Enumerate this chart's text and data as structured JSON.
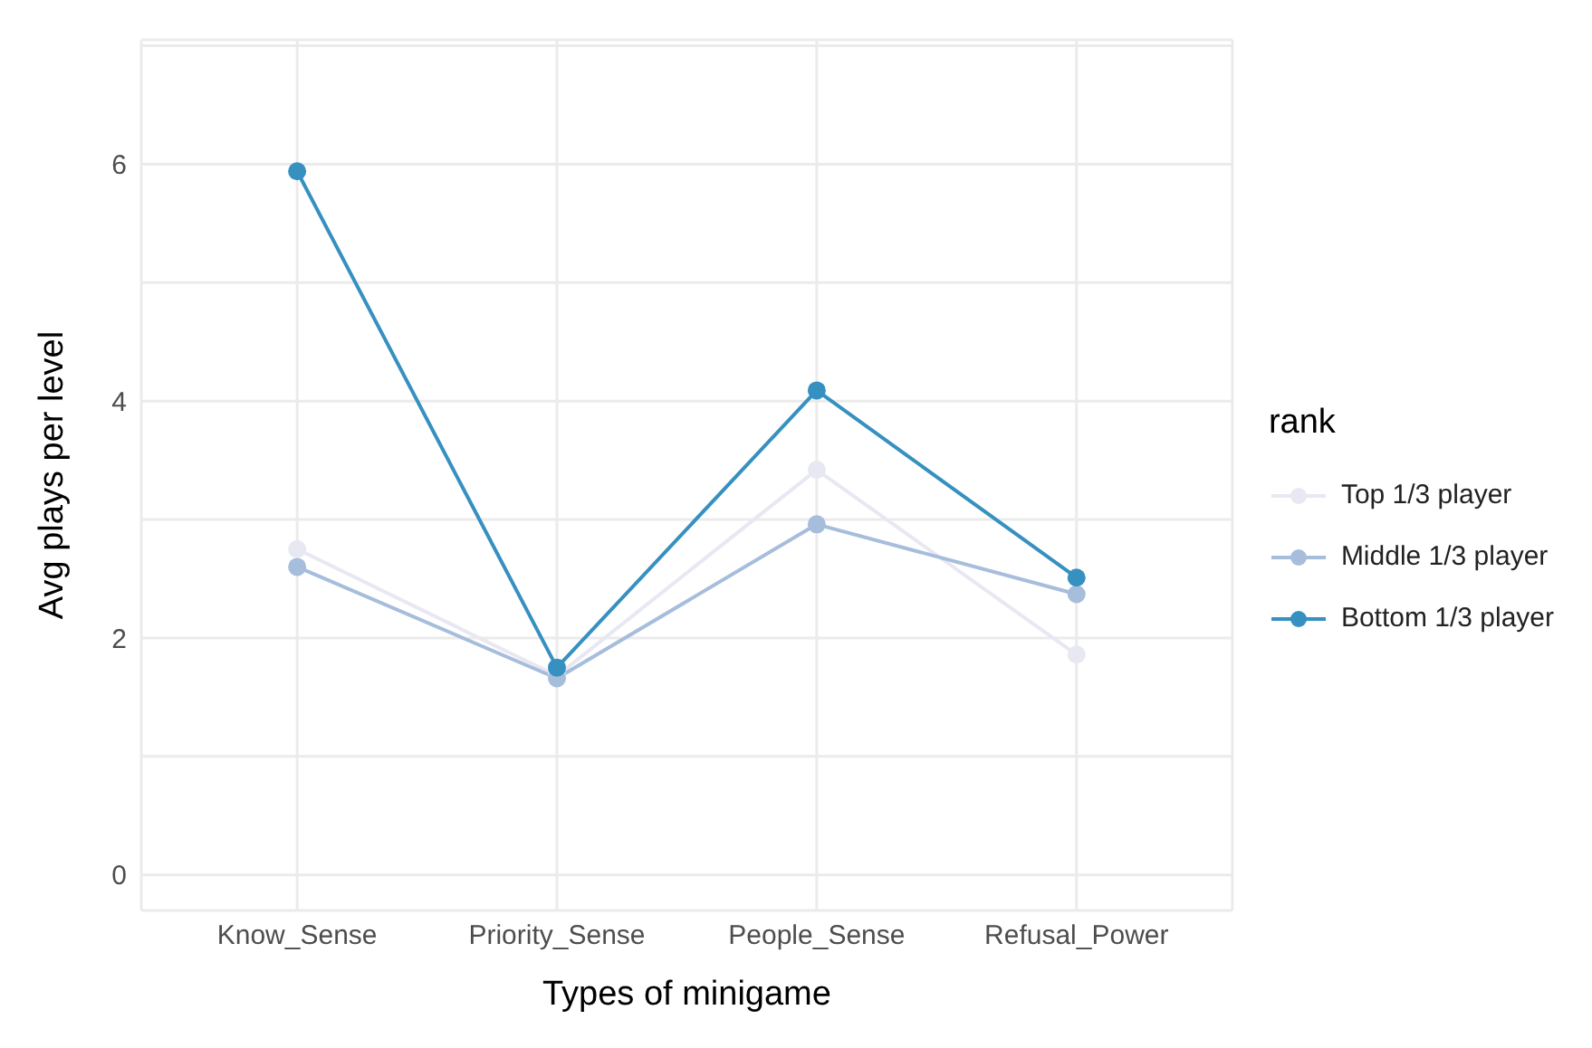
{
  "chart_data": {
    "type": "line",
    "xlabel": "Types of minigame",
    "ylabel": "Avg plays per level",
    "legend_title": "rank",
    "categories": [
      "Know_Sense",
      "Priority_Sense",
      "People_Sense",
      "Refusal_Power"
    ],
    "series": [
      {
        "name": "Top 1/3 player",
        "color": "#e7e8f2",
        "values": [
          2.75,
          1.68,
          3.42,
          1.86
        ]
      },
      {
        "name": "Middle 1/3 player",
        "color": "#a6bddb",
        "values": [
          2.6,
          1.66,
          2.96,
          2.37
        ]
      },
      {
        "name": "Bottom 1/3 player",
        "color": "#3690c0",
        "values": [
          5.94,
          1.75,
          4.09,
          2.51
        ]
      }
    ],
    "ylim": [
      -0.3,
      7.05
    ],
    "yticks": [
      0,
      {
        "value": 1,
        "label": null
      },
      2,
      {
        "value": 3,
        "label": null
      },
      4,
      {
        "value": 5,
        "label": null
      },
      6,
      {
        "value": 7,
        "label": null
      }
    ],
    "grid": true,
    "legend": "right",
    "marker": "circle",
    "line_style": "solid"
  }
}
